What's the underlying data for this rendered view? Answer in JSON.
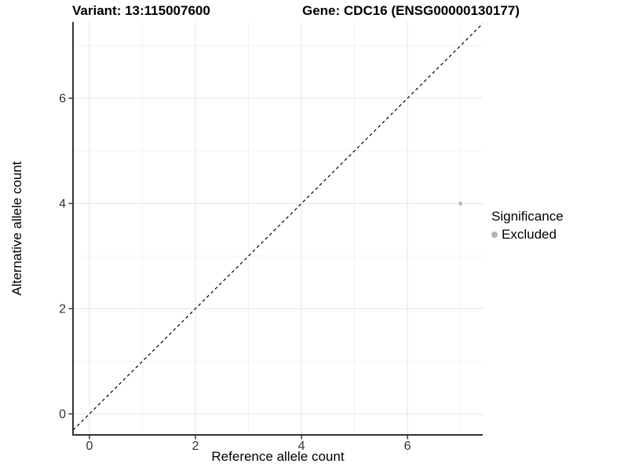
{
  "titles": {
    "variant": "Variant: 13:115007600",
    "gene": "Gene: CDC16 (ENSG00000130177)"
  },
  "legend": {
    "title": "Significance",
    "items": [
      {
        "label": "Excluded",
        "color": "#b3b3b3"
      }
    ]
  },
  "chart_data": {
    "type": "scatter",
    "title": "",
    "xlabel": "Reference allele count",
    "ylabel": "Alternative allele count",
    "xlim": [
      -0.31,
      7.42
    ],
    "ylim": [
      -0.4,
      7.45
    ],
    "x_ticks": [
      0,
      2,
      4,
      6
    ],
    "y_ticks": [
      0,
      2,
      4,
      6
    ],
    "x_minor_ticks": [
      1,
      3,
      5,
      7
    ],
    "y_minor_ticks": [
      1,
      3,
      5,
      7
    ],
    "grid": true,
    "legend_position": "right",
    "series": [
      {
        "name": "Excluded",
        "color": "#bdbdbd",
        "points": [
          [
            7,
            4
          ]
        ]
      }
    ],
    "identity_line": {
      "style": "dashed",
      "color": "#000000",
      "dash": "4 3.5"
    },
    "colors": {
      "background": "#ffffff",
      "grid_major": "#e4e4e4",
      "grid_minor": "#f2f2f2",
      "axis_line": "#333333",
      "tick_mark": "#333333",
      "tick_label": "#333333",
      "point": "#bdbdbd"
    }
  }
}
